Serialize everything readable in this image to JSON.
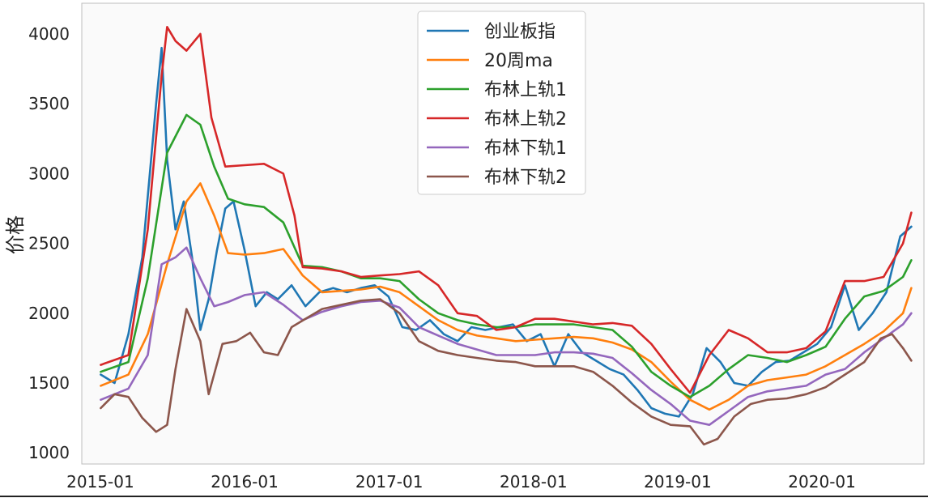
{
  "chart_data": {
    "type": "line",
    "title": "",
    "xlabel": "",
    "ylabel": "价格",
    "xlim": [
      "2014-11-15",
      "2020-09-15"
    ],
    "ylim": [
      920,
      4220
    ],
    "grid": false,
    "legend_position": "top-center",
    "x_ticks": [
      "2015-01",
      "2016-01",
      "2017-01",
      "2018-01",
      "2019-01",
      "2020-01"
    ],
    "y_ticks": [
      1000,
      1500,
      2000,
      2500,
      3000,
      3500,
      4000
    ],
    "series": [
      {
        "name": "创业板指",
        "color": "#1f77b4",
        "x": [
          "2015-01-02",
          "2015-02-06",
          "2015-03-13",
          "2015-04-17",
          "2015-05-22",
          "2015-06-05",
          "2015-06-19",
          "2015-07-10",
          "2015-07-31",
          "2015-08-21",
          "2015-09-11",
          "2015-10-02",
          "2015-10-23",
          "2015-11-13",
          "2015-12-04",
          "2016-01-01",
          "2016-01-29",
          "2016-02-26",
          "2016-03-25",
          "2016-04-29",
          "2016-06-03",
          "2016-07-08",
          "2016-08-12",
          "2016-09-16",
          "2016-10-21",
          "2016-11-25",
          "2016-12-30",
          "2017-02-03",
          "2017-03-10",
          "2017-04-14",
          "2017-05-19",
          "2017-06-23",
          "2017-07-28",
          "2017-09-01",
          "2017-10-06",
          "2017-11-10",
          "2017-12-15",
          "2018-01-19",
          "2018-02-23",
          "2018-03-30",
          "2018-05-04",
          "2018-06-08",
          "2018-07-13",
          "2018-08-17",
          "2018-09-21",
          "2018-10-26",
          "2018-11-30",
          "2019-01-04",
          "2019-02-08",
          "2019-03-15",
          "2019-04-19",
          "2019-05-24",
          "2019-06-28",
          "2019-08-02",
          "2019-09-06",
          "2019-10-11",
          "2019-11-15",
          "2019-12-20",
          "2020-01-24",
          "2020-02-28",
          "2020-04-03",
          "2020-05-08",
          "2020-06-12",
          "2020-07-17",
          "2020-08-14"
        ],
        "values": [
          1560,
          1500,
          1850,
          2400,
          3500,
          3900,
          3100,
          2600,
          2800,
          2400,
          1880,
          2100,
          2450,
          2750,
          2800,
          2450,
          2050,
          2150,
          2100,
          2200,
          2050,
          2150,
          2180,
          2150,
          2180,
          2200,
          2120,
          1900,
          1880,
          1950,
          1850,
          1800,
          1900,
          1880,
          1900,
          1920,
          1800,
          1850,
          1620,
          1850,
          1720,
          1660,
          1600,
          1560,
          1450,
          1320,
          1280,
          1260,
          1420,
          1750,
          1650,
          1500,
          1480,
          1580,
          1650,
          1660,
          1720,
          1780,
          1900,
          2200,
          1880,
          2000,
          2150,
          2550,
          2620
        ]
      },
      {
        "name": "20周ma",
        "color": "#ff7f0e",
        "x": [
          "2015-01-02",
          "2015-03-13",
          "2015-05-01",
          "2015-06-19",
          "2015-08-07",
          "2015-09-11",
          "2015-10-16",
          "2015-11-20",
          "2016-01-01",
          "2016-02-19",
          "2016-04-08",
          "2016-05-27",
          "2016-07-15",
          "2016-09-02",
          "2016-10-21",
          "2016-12-09",
          "2017-01-27",
          "2017-03-17",
          "2017-05-05",
          "2017-06-23",
          "2017-08-11",
          "2017-09-29",
          "2017-11-17",
          "2018-01-05",
          "2018-02-23",
          "2018-04-13",
          "2018-06-01",
          "2018-07-20",
          "2018-09-07",
          "2018-10-26",
          "2018-12-14",
          "2019-02-01",
          "2019-03-22",
          "2019-05-10",
          "2019-06-28",
          "2019-08-16",
          "2019-10-04",
          "2019-11-22",
          "2020-01-10",
          "2020-02-28",
          "2020-04-17",
          "2020-06-05",
          "2020-07-24",
          "2020-08-14"
        ],
        "values": [
          1480,
          1560,
          1850,
          2350,
          2800,
          2930,
          2700,
          2430,
          2420,
          2430,
          2460,
          2270,
          2150,
          2160,
          2170,
          2190,
          2150,
          2050,
          1950,
          1880,
          1840,
          1820,
          1800,
          1810,
          1820,
          1830,
          1820,
          1790,
          1740,
          1650,
          1510,
          1380,
          1310,
          1380,
          1480,
          1520,
          1540,
          1560,
          1620,
          1700,
          1780,
          1870,
          2000,
          2180
        ]
      },
      {
        "name": "布林上轨1",
        "color": "#2ca02c",
        "x": [
          "2015-01-02",
          "2015-03-13",
          "2015-05-01",
          "2015-06-19",
          "2015-08-07",
          "2015-09-11",
          "2015-10-16",
          "2015-11-20",
          "2016-01-01",
          "2016-02-19",
          "2016-04-08",
          "2016-05-27",
          "2016-07-15",
          "2016-09-02",
          "2016-10-21",
          "2016-12-09",
          "2017-01-27",
          "2017-03-17",
          "2017-05-05",
          "2017-06-23",
          "2017-08-11",
          "2017-09-29",
          "2017-11-17",
          "2018-01-05",
          "2018-02-23",
          "2018-04-13",
          "2018-06-01",
          "2018-07-20",
          "2018-09-07",
          "2018-10-26",
          "2018-12-14",
          "2019-02-01",
          "2019-03-22",
          "2019-05-10",
          "2019-06-28",
          "2019-08-16",
          "2019-10-04",
          "2019-11-22",
          "2020-01-10",
          "2020-02-28",
          "2020-04-17",
          "2020-06-05",
          "2020-07-24",
          "2020-08-14"
        ],
        "values": [
          1580,
          1650,
          2250,
          3150,
          3420,
          3350,
          3050,
          2820,
          2780,
          2760,
          2650,
          2340,
          2330,
          2300,
          2250,
          2250,
          2230,
          2100,
          2000,
          1950,
          1920,
          1900,
          1900,
          1920,
          1920,
          1920,
          1900,
          1880,
          1760,
          1580,
          1480,
          1400,
          1480,
          1600,
          1700,
          1680,
          1650,
          1700,
          1760,
          1960,
          2120,
          2160,
          2260,
          2380
        ]
      },
      {
        "name": "布林上轨2",
        "color": "#d62728",
        "x": [
          "2015-01-02",
          "2015-03-13",
          "2015-05-01",
          "2015-06-05",
          "2015-06-19",
          "2015-07-10",
          "2015-08-07",
          "2015-09-11",
          "2015-10-09",
          "2015-11-13",
          "2016-01-01",
          "2016-02-19",
          "2016-04-08",
          "2016-05-06",
          "2016-05-27",
          "2016-07-15",
          "2016-09-02",
          "2016-10-21",
          "2016-12-09",
          "2017-01-27",
          "2017-03-17",
          "2017-05-05",
          "2017-06-23",
          "2017-08-11",
          "2017-09-29",
          "2017-11-17",
          "2018-01-05",
          "2018-02-23",
          "2018-04-13",
          "2018-06-01",
          "2018-07-20",
          "2018-09-07",
          "2018-10-26",
          "2018-12-14",
          "2019-02-01",
          "2019-03-22",
          "2019-05-10",
          "2019-06-28",
          "2019-08-16",
          "2019-10-04",
          "2019-11-22",
          "2020-01-10",
          "2020-02-28",
          "2020-04-17",
          "2020-06-05",
          "2020-07-24",
          "2020-08-14"
        ],
        "values": [
          1630,
          1700,
          2600,
          3700,
          4050,
          3950,
          3880,
          4000,
          3400,
          3050,
          3060,
          3070,
          3000,
          2700,
          2330,
          2320,
          2300,
          2260,
          2270,
          2280,
          2300,
          2200,
          2000,
          1980,
          1880,
          1900,
          1960,
          1960,
          1940,
          1920,
          1930,
          1910,
          1780,
          1600,
          1430,
          1700,
          1880,
          1820,
          1720,
          1720,
          1750,
          1870,
          2230,
          2230,
          2260,
          2500,
          2720
        ]
      },
      {
        "name": "布林下轨1",
        "color": "#9467bd",
        "x": [
          "2015-01-02",
          "2015-03-13",
          "2015-05-01",
          "2015-06-05",
          "2015-07-10",
          "2015-08-07",
          "2015-09-11",
          "2015-10-16",
          "2015-11-20",
          "2016-01-01",
          "2016-02-19",
          "2016-04-08",
          "2016-05-27",
          "2016-07-15",
          "2016-09-02",
          "2016-10-21",
          "2016-12-09",
          "2017-01-27",
          "2017-03-17",
          "2017-05-05",
          "2017-06-23",
          "2017-08-11",
          "2017-09-29",
          "2017-11-17",
          "2018-01-05",
          "2018-02-23",
          "2018-04-13",
          "2018-06-01",
          "2018-07-20",
          "2018-09-07",
          "2018-10-26",
          "2018-12-14",
          "2019-02-01",
          "2019-03-22",
          "2019-05-10",
          "2019-06-28",
          "2019-08-16",
          "2019-10-04",
          "2019-11-22",
          "2020-01-10",
          "2020-02-28",
          "2020-04-17",
          "2020-06-05",
          "2020-07-24",
          "2020-08-14"
        ],
        "values": [
          1380,
          1460,
          1700,
          2350,
          2400,
          2470,
          2250,
          2050,
          2080,
          2130,
          2150,
          2060,
          1950,
          2010,
          2050,
          2080,
          2090,
          2040,
          1900,
          1840,
          1780,
          1740,
          1700,
          1700,
          1700,
          1720,
          1720,
          1710,
          1680,
          1570,
          1450,
          1350,
          1230,
          1200,
          1300,
          1400,
          1440,
          1460,
          1480,
          1560,
          1600,
          1720,
          1820,
          1920,
          2000
        ]
      },
      {
        "name": "布林下轨2",
        "color": "#8c564b",
        "x": [
          "2015-01-02",
          "2015-02-06",
          "2015-03-13",
          "2015-04-17",
          "2015-05-22",
          "2015-06-19",
          "2015-07-10",
          "2015-08-07",
          "2015-09-11",
          "2015-10-02",
          "2015-11-06",
          "2015-12-11",
          "2016-01-15",
          "2016-02-19",
          "2016-03-25",
          "2016-04-29",
          "2016-06-03",
          "2016-07-15",
          "2016-09-02",
          "2016-10-21",
          "2016-12-09",
          "2017-01-27",
          "2017-03-17",
          "2017-05-05",
          "2017-06-23",
          "2017-08-11",
          "2017-09-29",
          "2017-11-17",
          "2018-01-05",
          "2018-02-23",
          "2018-04-13",
          "2018-06-01",
          "2018-07-20",
          "2018-09-07",
          "2018-10-26",
          "2018-12-14",
          "2019-02-01",
          "2019-03-08",
          "2019-04-12",
          "2019-05-24",
          "2019-07-05",
          "2019-08-16",
          "2019-10-04",
          "2019-11-22",
          "2020-01-10",
          "2020-02-28",
          "2020-04-17",
          "2020-05-29",
          "2020-06-26",
          "2020-07-24",
          "2020-08-14"
        ],
        "values": [
          1320,
          1420,
          1400,
          1250,
          1150,
          1200,
          1600,
          2030,
          1800,
          1420,
          1780,
          1800,
          1860,
          1720,
          1700,
          1900,
          1960,
          2030,
          2060,
          2090,
          2100,
          2000,
          1800,
          1730,
          1700,
          1680,
          1660,
          1650,
          1620,
          1620,
          1620,
          1580,
          1480,
          1360,
          1260,
          1200,
          1190,
          1060,
          1100,
          1260,
          1350,
          1380,
          1390,
          1420,
          1470,
          1560,
          1650,
          1820,
          1850,
          1750,
          1660
        ]
      }
    ]
  }
}
